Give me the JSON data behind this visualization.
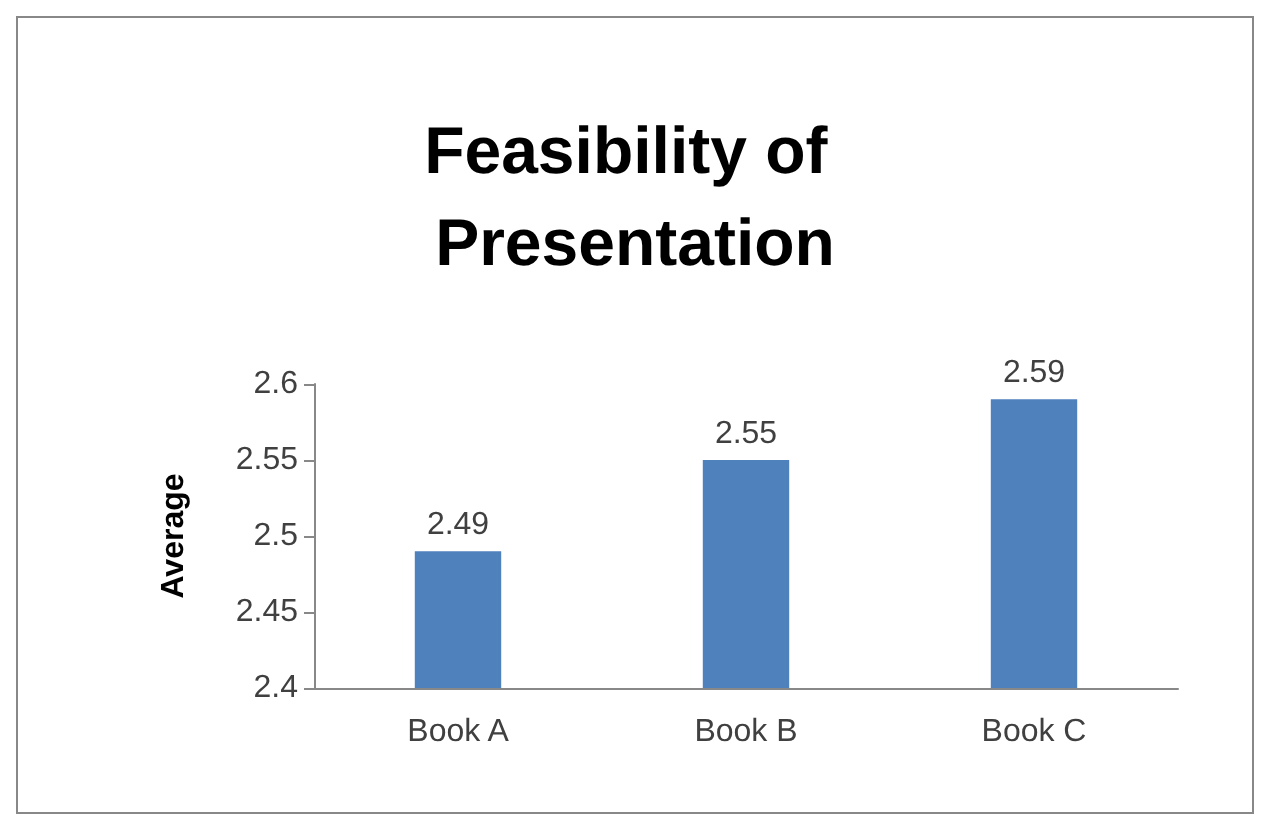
{
  "chart_data": {
    "type": "bar",
    "title": "Feasibility of Presentation",
    "ylabel": "Average",
    "categories": [
      "Book A",
      "Book B",
      "Book C"
    ],
    "values": [
      2.49,
      2.55,
      2.59
    ],
    "color": "#4f81bd",
    "ylim": [
      2.4,
      2.6
    ],
    "yticks": [
      2.4,
      2.45,
      2.5,
      2.55,
      2.6
    ],
    "data_labels": true,
    "grid": false
  }
}
